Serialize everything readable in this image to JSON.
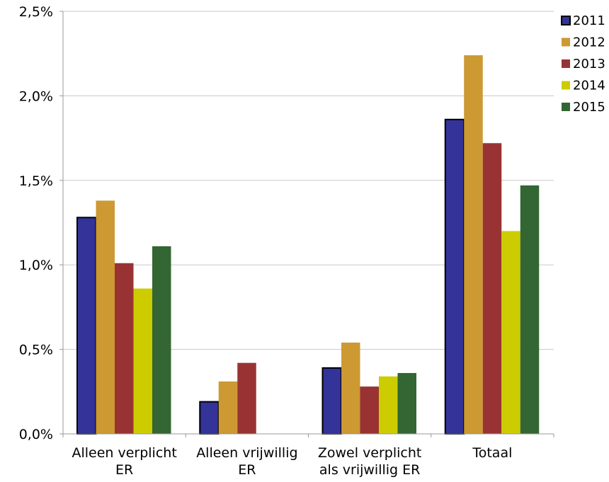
{
  "chart_data": {
    "type": "bar",
    "categories": [
      [
        "Alleen verplicht",
        "ER"
      ],
      [
        "Alleen vrijwillig",
        "ER"
      ],
      [
        "Zowel verplicht",
        "als vrijwillig ER"
      ],
      [
        "Totaal"
      ]
    ],
    "series": [
      {
        "name": "2011",
        "color": "#333399",
        "values": [
          1.28,
          0.19,
          0.39,
          1.86
        ]
      },
      {
        "name": "2012",
        "color": "#CC9933",
        "values": [
          1.38,
          0.31,
          0.54,
          2.24
        ]
      },
      {
        "name": "2013",
        "color": "#993333",
        "values": [
          1.01,
          0.42,
          0.28,
          1.72
        ]
      },
      {
        "name": "2014",
        "color": "#CCCC00",
        "values": [
          0.86,
          null,
          0.34,
          1.2
        ]
      },
      {
        "name": "2015",
        "color": "#336633",
        "values": [
          1.11,
          null,
          0.36,
          1.47
        ]
      }
    ],
    "ylim": [
      0,
      2.5
    ],
    "yticks": [
      0,
      0.5,
      1.0,
      1.5,
      2.0,
      2.5
    ],
    "ytick_labels": [
      "0,0%",
      "0,5%",
      "1,0%",
      "1,5%",
      "2,0%",
      "2,5%"
    ],
    "grid": true,
    "legend_position": "right",
    "title": "",
    "xlabel": "",
    "ylabel": ""
  }
}
